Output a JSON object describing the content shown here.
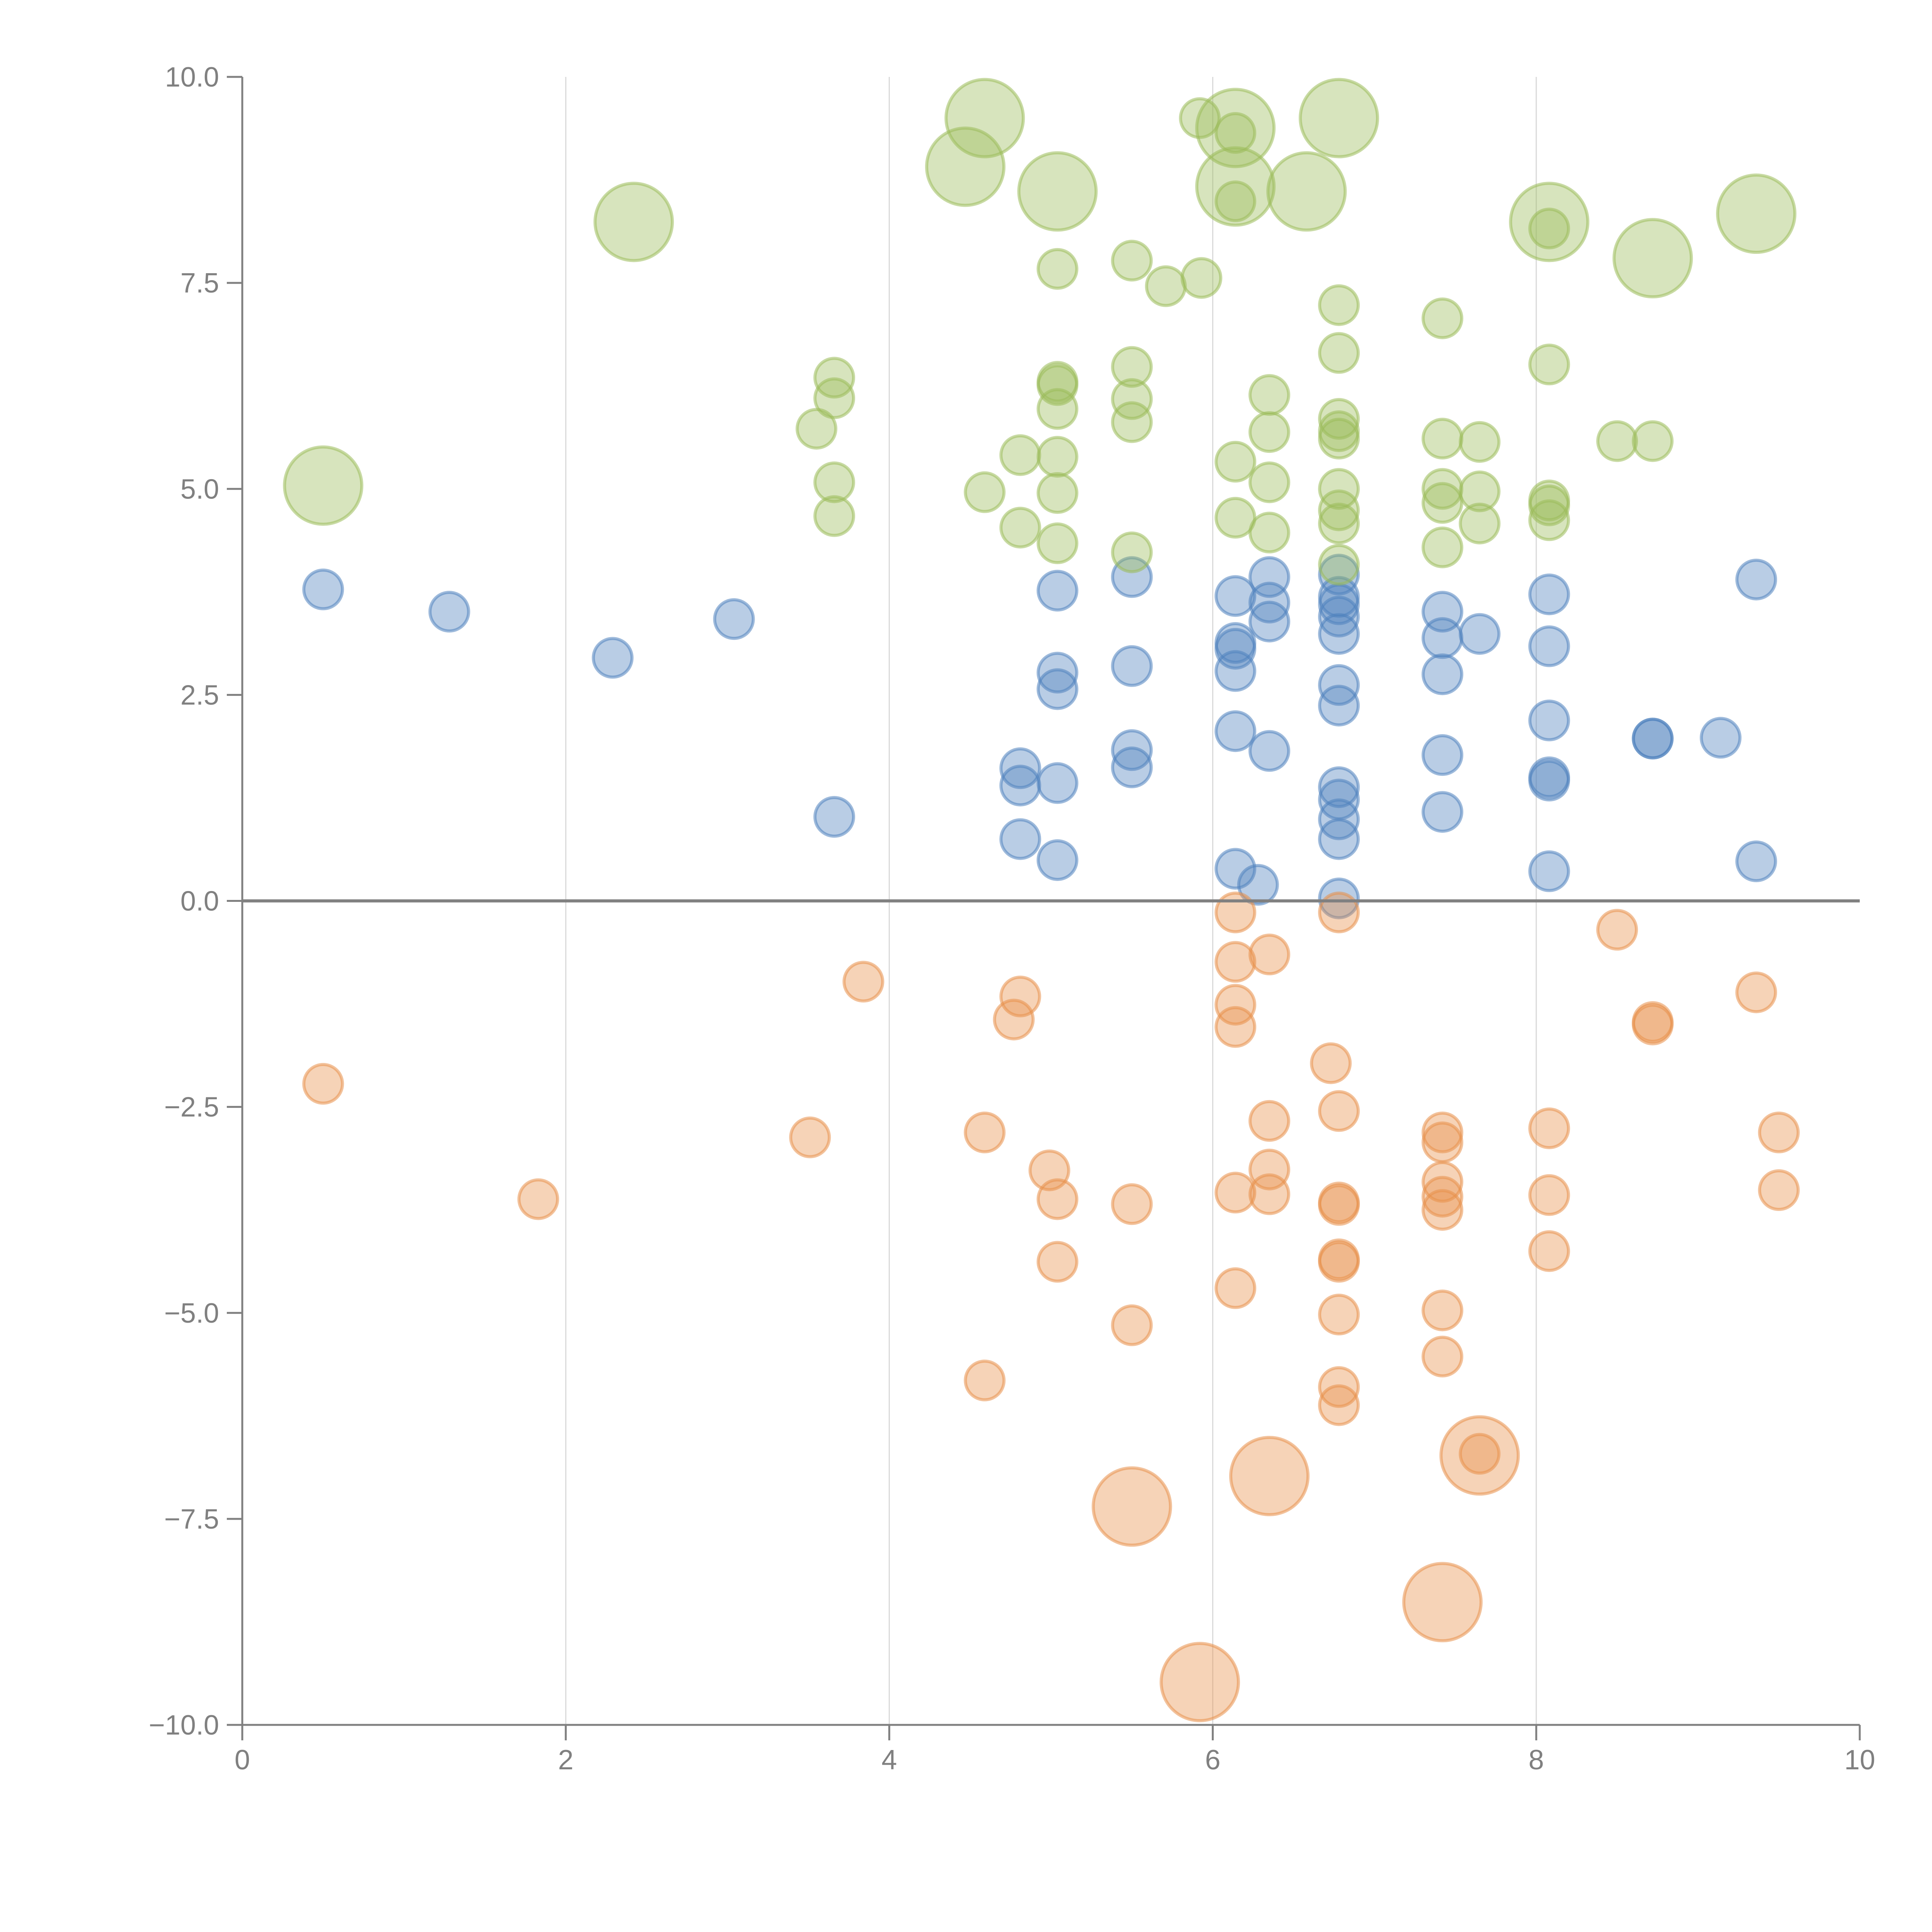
{
  "chart_data": {
    "type": "scatter",
    "title": "",
    "xlabel": "",
    "ylabel": "",
    "xlim": [
      0,
      10
    ],
    "ylim": [
      -10,
      10
    ],
    "x_ticks": [
      "0",
      "2",
      "4",
      "6",
      "8",
      "10"
    ],
    "y_ticks": [
      "10.0",
      "7.5",
      "5.0",
      "2.5",
      "0.0",
      "−2.5",
      "−5.0",
      "−7.5",
      "−10.0"
    ],
    "grid": "vertical",
    "legend": "none",
    "colors": {
      "blue": "#4f81bd",
      "orange": "#e8904a",
      "green": "#9bbb59"
    },
    "series": [
      {
        "name": "blue",
        "color": "#4f81bd",
        "points": [
          [
            0.5,
            3.78,
            1
          ],
          [
            1.28,
            3.51,
            1
          ],
          [
            2.29,
            2.95,
            1
          ],
          [
            3.04,
            3.42,
            1
          ],
          [
            3.66,
            1.02,
            1
          ],
          [
            4.81,
            1.61,
            1
          ],
          [
            4.81,
            1.4,
            1
          ],
          [
            4.81,
            0.75,
            1
          ],
          [
            5.04,
            3.765,
            1
          ],
          [
            5.04,
            2.77,
            1
          ],
          [
            5.04,
            2.57,
            1
          ],
          [
            5.04,
            1.43,
            1
          ],
          [
            5.04,
            0.495,
            1
          ],
          [
            5.5,
            3.93,
            1
          ],
          [
            5.5,
            2.85,
            1
          ],
          [
            5.5,
            1.83,
            1
          ],
          [
            5.5,
            1.62,
            1
          ],
          [
            6.14,
            3.7,
            1
          ],
          [
            6.14,
            3.13,
            1
          ],
          [
            6.14,
            3.06,
            1
          ],
          [
            6.14,
            2.79,
            1
          ],
          [
            6.14,
            2.06,
            1
          ],
          [
            6.14,
            0.39,
            1
          ],
          [
            6.28,
            0.195,
            1
          ],
          [
            6.35,
            3.93,
            1
          ],
          [
            6.35,
            3.62,
            1
          ],
          [
            6.35,
            3.39,
            1
          ],
          [
            6.35,
            1.82,
            1
          ],
          [
            6.78,
            3.96,
            1
          ],
          [
            6.78,
            3.69,
            1
          ],
          [
            6.78,
            3.6,
            1
          ],
          [
            6.78,
            3.45,
            1
          ],
          [
            6.78,
            3.24,
            1
          ],
          [
            6.78,
            2.62,
            1
          ],
          [
            6.78,
            2.37,
            1
          ],
          [
            6.78,
            1.38,
            1
          ],
          [
            6.78,
            1.23,
            1
          ],
          [
            6.78,
            0.99,
            1
          ],
          [
            6.78,
            0.75,
            1
          ],
          [
            6.78,
            0.03,
            1
          ],
          [
            7.42,
            3.51,
            1
          ],
          [
            7.42,
            3.19,
            1
          ],
          [
            7.42,
            2.75,
            1
          ],
          [
            7.42,
            1.77,
            1
          ],
          [
            7.42,
            1.08,
            1
          ],
          [
            7.65,
            3.24,
            1
          ],
          [
            8.08,
            3.72,
            1
          ],
          [
            8.08,
            3.09,
            1
          ],
          [
            8.08,
            2.19,
            1
          ],
          [
            8.08,
            1.5,
            1
          ],
          [
            8.08,
            1.46,
            1
          ],
          [
            8.08,
            0.36,
            1
          ],
          [
            8.72,
            1.97,
            1
          ],
          [
            8.72,
            1.97,
            1
          ],
          [
            9.14,
            1.98,
            1
          ],
          [
            9.36,
            3.9,
            1
          ],
          [
            9.36,
            0.48,
            1
          ]
        ]
      },
      {
        "name": "orange",
        "color": "#e8904a",
        "points": [
          [
            0.5,
            -2.22,
            1
          ],
          [
            1.83,
            -3.62,
            1
          ],
          [
            3.51,
            -2.87,
            1
          ],
          [
            3.84,
            -0.98,
            1
          ],
          [
            4.59,
            -2.81,
            1
          ],
          [
            4.59,
            -5.82,
            1
          ],
          [
            4.77,
            -1.44,
            1
          ],
          [
            4.81,
            -1.16,
            1
          ],
          [
            4.99,
            -3.27,
            1
          ],
          [
            5.04,
            -3.62,
            1
          ],
          [
            5.04,
            -4.38,
            1
          ],
          [
            5.5,
            -3.68,
            1
          ],
          [
            5.5,
            -5.15,
            1
          ],
          [
            6.14,
            -0.14,
            1
          ],
          [
            6.14,
            -0.74,
            1
          ],
          [
            6.14,
            -1.26,
            1
          ],
          [
            6.14,
            -1.53,
            1
          ],
          [
            6.14,
            -3.54,
            1
          ],
          [
            6.14,
            -4.7,
            1
          ],
          [
            6.35,
            -0.65,
            1
          ],
          [
            6.35,
            -2.67,
            1
          ],
          [
            6.35,
            -3.26,
            1
          ],
          [
            6.35,
            -3.56,
            1
          ],
          [
            6.73,
            -1.97,
            1
          ],
          [
            6.78,
            -0.14,
            1
          ],
          [
            6.78,
            -2.55,
            1
          ],
          [
            6.78,
            -3.66,
            1
          ],
          [
            6.78,
            -3.69,
            1
          ],
          [
            6.78,
            -4.35,
            1
          ],
          [
            6.78,
            -4.38,
            1
          ],
          [
            6.78,
            -5.02,
            1
          ],
          [
            6.78,
            -5.9,
            1
          ],
          [
            6.78,
            -6.12,
            1
          ],
          [
            7.42,
            -2.81,
            1
          ],
          [
            7.42,
            -2.93,
            1
          ],
          [
            7.42,
            -3.41,
            1
          ],
          [
            7.42,
            -3.59,
            1
          ],
          [
            7.42,
            -3.75,
            1
          ],
          [
            7.42,
            -4.97,
            1
          ],
          [
            7.42,
            -5.53,
            1
          ],
          [
            7.65,
            -6.71,
            1
          ],
          [
            8.08,
            -2.76,
            1
          ],
          [
            8.08,
            -3.57,
            1
          ],
          [
            8.08,
            -4.25,
            1
          ],
          [
            8.5,
            -0.35,
            1
          ],
          [
            8.72,
            -1.47,
            1
          ],
          [
            8.72,
            -1.5,
            1
          ],
          [
            9.36,
            -1.11,
            1
          ],
          [
            9.5,
            -2.81,
            1
          ],
          [
            9.5,
            -3.51,
            1
          ],
          [
            5.5,
            -7.35,
            3
          ],
          [
            6.35,
            -6.98,
            3
          ],
          [
            7.65,
            -6.73,
            3
          ],
          [
            7.42,
            -8.51,
            3
          ],
          [
            5.92,
            -9.48,
            3
          ]
        ]
      },
      {
        "name": "green",
        "color": "#9bbb59",
        "points": [
          [
            3.66,
            6.35,
            1
          ],
          [
            3.66,
            6.1,
            1
          ],
          [
            3.55,
            5.73,
            1
          ],
          [
            3.66,
            5.08,
            1
          ],
          [
            3.66,
            4.67,
            1
          ],
          [
            4.59,
            4.96,
            1
          ],
          [
            4.81,
            5.41,
            1
          ],
          [
            4.81,
            4.53,
            1
          ],
          [
            5.04,
            7.67,
            1
          ],
          [
            5.04,
            6.3,
            1
          ],
          [
            5.04,
            6.26,
            1
          ],
          [
            5.04,
            5.97,
            1
          ],
          [
            5.04,
            5.39,
            1
          ],
          [
            5.04,
            4.95,
            1
          ],
          [
            5.04,
            4.34,
            1
          ],
          [
            5.5,
            7.77,
            1
          ],
          [
            5.5,
            6.48,
            1
          ],
          [
            5.5,
            6.09,
            1
          ],
          [
            5.5,
            5.81,
            1
          ],
          [
            5.5,
            4.23,
            1
          ],
          [
            5.71,
            7.46,
            1
          ],
          [
            5.93,
            7.56,
            1
          ],
          [
            5.92,
            9.5,
            1
          ],
          [
            6.14,
            9.32,
            1
          ],
          [
            6.14,
            8.49,
            1
          ],
          [
            6.14,
            5.33,
            1
          ],
          [
            6.14,
            4.65,
            1
          ],
          [
            6.35,
            6.14,
            1
          ],
          [
            6.35,
            5.69,
            1
          ],
          [
            6.35,
            5.08,
            1
          ],
          [
            6.35,
            4.47,
            1
          ],
          [
            6.78,
            7.23,
            1
          ],
          [
            6.78,
            6.65,
            1
          ],
          [
            6.78,
            5.85,
            1
          ],
          [
            6.78,
            5.7,
            1
          ],
          [
            6.78,
            5.61,
            1
          ],
          [
            6.78,
            5.0,
            1
          ],
          [
            6.78,
            4.74,
            1
          ],
          [
            6.78,
            4.58,
            1
          ],
          [
            6.78,
            4.08,
            1
          ],
          [
            7.42,
            7.07,
            1
          ],
          [
            7.42,
            5.61,
            1
          ],
          [
            7.42,
            5.0,
            1
          ],
          [
            7.42,
            4.83,
            1
          ],
          [
            7.42,
            4.29,
            1
          ],
          [
            7.65,
            5.57,
            1
          ],
          [
            7.65,
            4.97,
            1
          ],
          [
            7.65,
            4.58,
            1
          ],
          [
            8.08,
            8.16,
            1
          ],
          [
            8.08,
            6.51,
            1
          ],
          [
            8.08,
            4.86,
            1
          ],
          [
            8.08,
            4.8,
            1
          ],
          [
            8.08,
            4.62,
            1
          ],
          [
            8.5,
            5.58,
            1
          ],
          [
            8.72,
            5.58,
            1
          ],
          [
            0.5,
            5.04,
            3
          ],
          [
            2.42,
            8.24,
            3
          ],
          [
            4.47,
            8.91,
            3
          ],
          [
            4.59,
            9.5,
            3
          ],
          [
            5.04,
            8.61,
            3
          ],
          [
            6.14,
            9.38,
            3
          ],
          [
            6.14,
            8.67,
            3
          ],
          [
            6.58,
            8.61,
            3
          ],
          [
            6.78,
            9.5,
            3
          ],
          [
            8.08,
            8.24,
            3
          ],
          [
            8.72,
            7.8,
            3
          ],
          [
            9.36,
            8.34,
            3
          ]
        ]
      }
    ]
  }
}
